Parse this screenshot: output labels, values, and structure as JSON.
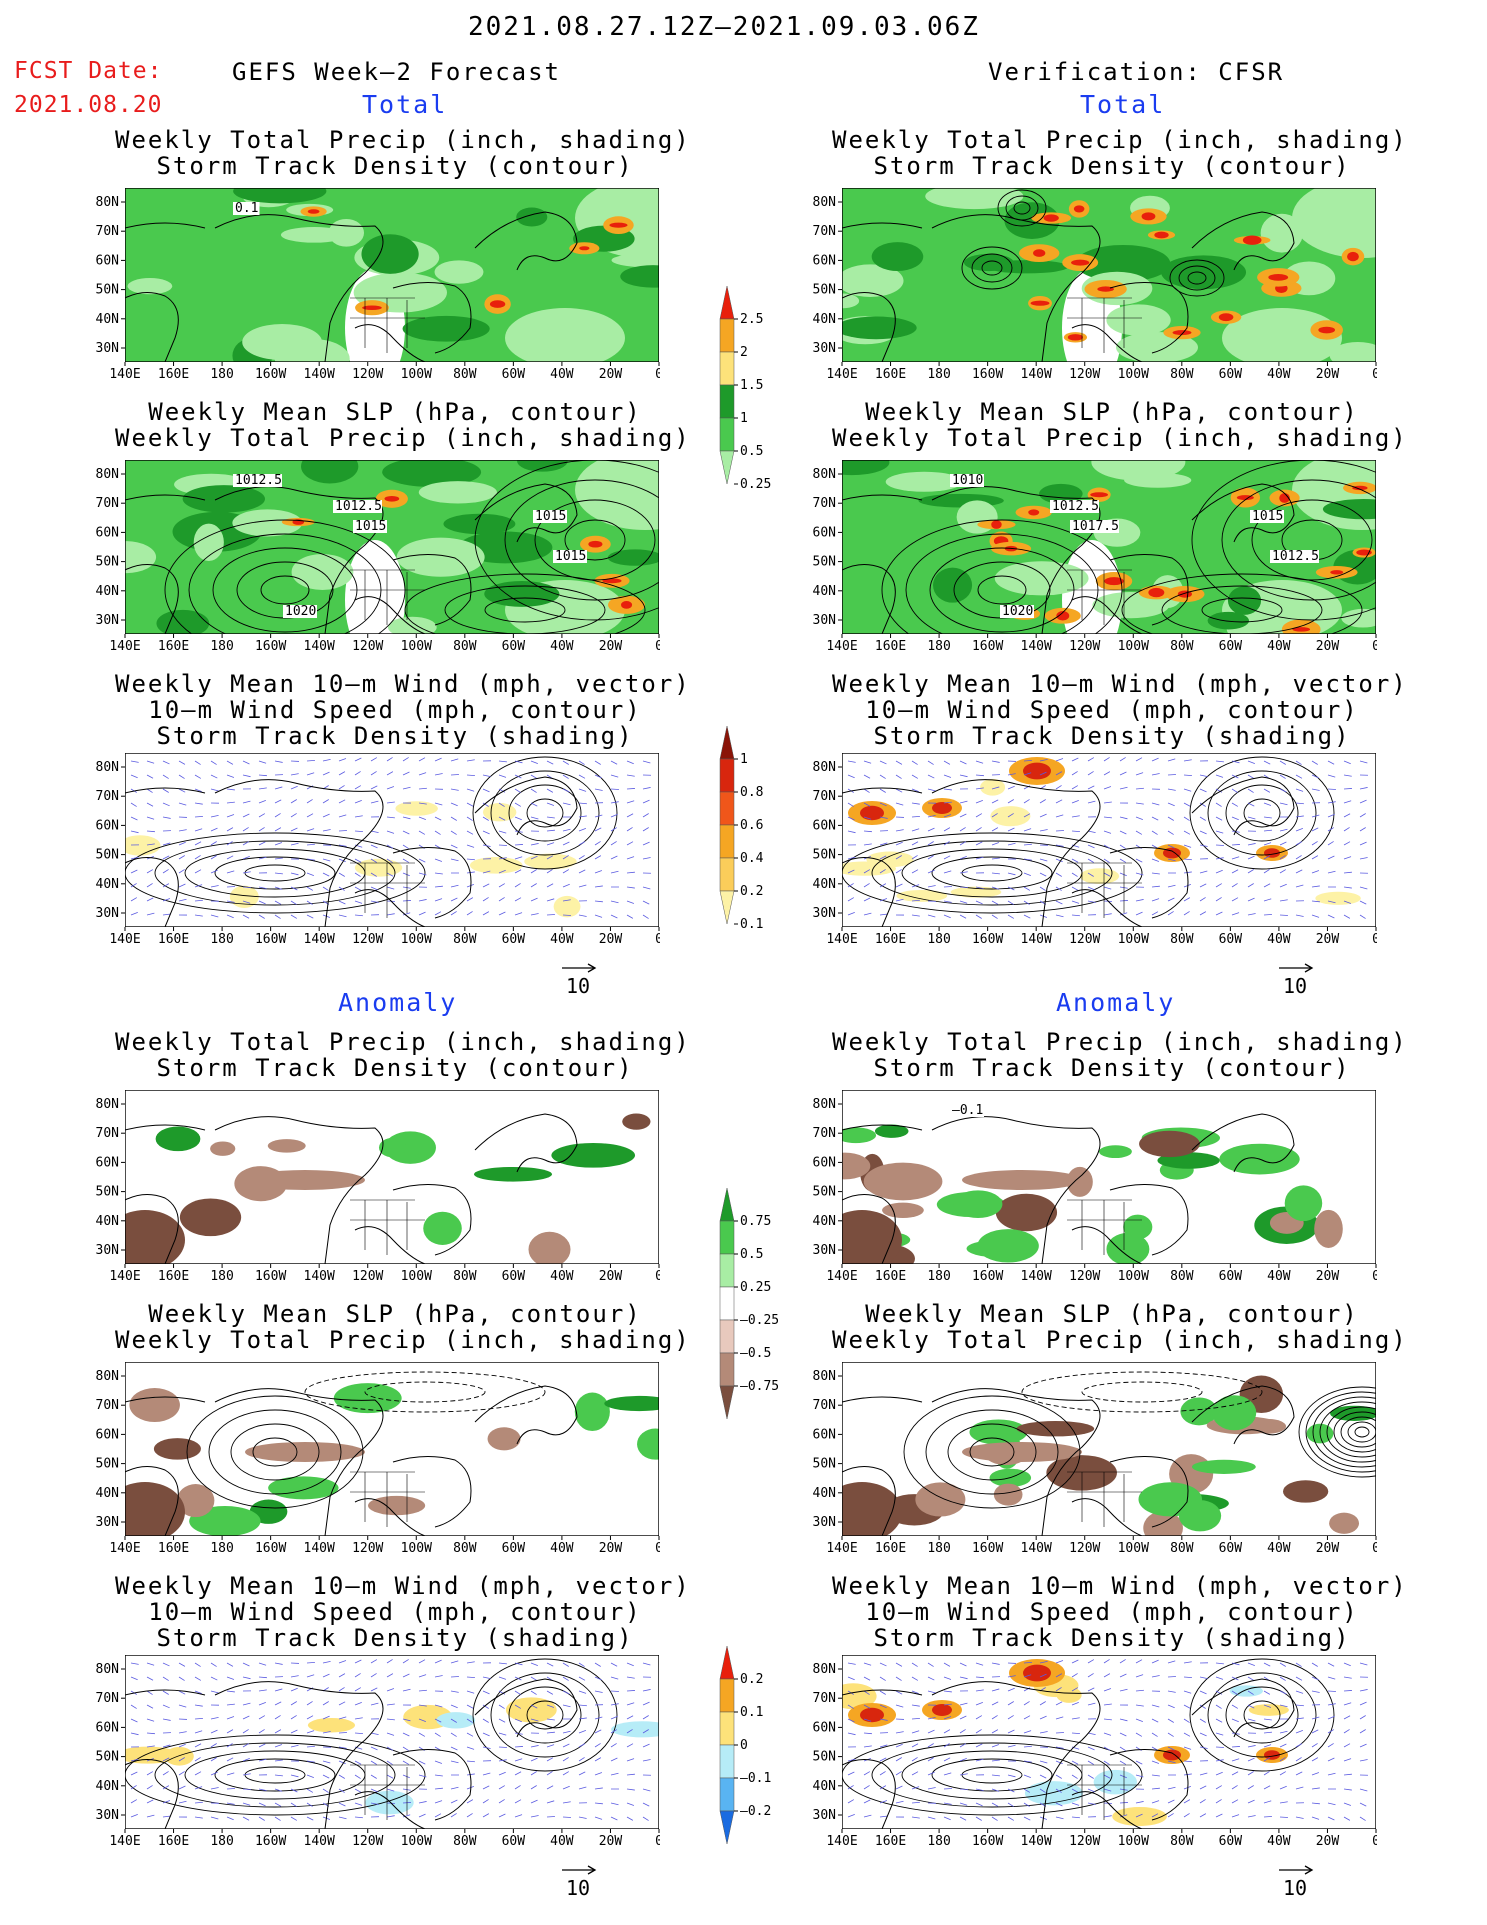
{
  "header": {
    "date_range": "2021.08.27.12Z–2021.09.03.06Z",
    "fcst_label": "FCST Date:",
    "fcst_date": "2021.08.20",
    "left_title": "GEFS Week–2 Forecast",
    "right_title": "Verification: CFSR"
  },
  "sections": {
    "total": "Total",
    "anomaly": "Anomaly"
  },
  "panel_titles": {
    "precip_storm": [
      "Weekly Total Precip (inch, shading)",
      "Storm Track Density (contour)"
    ],
    "slp_precip": [
      "Weekly Mean SLP (hPa, contour)",
      "Weekly Total Precip (inch, shading)"
    ],
    "wind_storm": [
      "Weekly Mean 10–m Wind (mph, vector)",
      "10–m Wind Speed (mph, contour)",
      "Storm Track Density (shading)"
    ]
  },
  "axes": {
    "lat_labels": [
      "80N",
      "70N",
      "60N",
      "50N",
      "40N",
      "30N"
    ],
    "lon_labels": [
      "140E",
      "160E",
      "180",
      "160W",
      "140W",
      "120W",
      "100W",
      "80W",
      "60W",
      "40W",
      "20W",
      "0"
    ]
  },
  "contour_labels": {
    "fcst_precip": [
      "0.1"
    ],
    "fcst_slp": [
      "1012.5",
      "1012.5",
      "1015",
      "1015",
      "1015",
      "1020"
    ],
    "cfsr_slp": [
      "1010",
      "1012.5",
      "1017.5",
      "1015",
      "1012.5",
      "1020"
    ],
    "cfsr_precip_anom": [
      "–0.1"
    ]
  },
  "vector_reference": "10",
  "colorbars": {
    "precip_total": {
      "labels": [
        "2.5",
        "2",
        "1.5",
        "1",
        "0.5",
        "0.25"
      ],
      "colors": [
        "#e8200c",
        "#f5a623",
        "#fde27a",
        "#1e9a2a",
        "#4ac94e",
        "#a8eda4"
      ]
    },
    "storm_total": {
      "labels": [
        "1",
        "0.8",
        "0.6",
        "0.4",
        "0.2",
        "0.1"
      ],
      "colors": [
        "#8a1408",
        "#d8260e",
        "#f0561a",
        "#f5a623",
        "#fbcd5a",
        "#fdf2a6"
      ]
    },
    "precip_anom": {
      "labels": [
        "0.75",
        "0.5",
        "0.25",
        "–0.25",
        "–0.5",
        "–0.75"
      ],
      "colors": [
        "#1e9a2a",
        "#4ac94e",
        "#a8eda4",
        "#ffffff",
        "#e8c9bd",
        "#b48a78",
        "#7a4e3e"
      ]
    },
    "storm_anom": {
      "labels": [
        "0.2",
        "0.1",
        "0",
        "–0.1",
        "–0.2"
      ],
      "colors": [
        "#e8200c",
        "#f5a623",
        "#fde27a",
        "#b6ecf7",
        "#59b4f2",
        "#1a6be0"
      ]
    }
  },
  "colors": {
    "fcst_red": "#e81c1c",
    "section_blue": "#1a3cf0",
    "precip_light": "#a8eda4",
    "precip_mid": "#4ac94e",
    "precip_dark": "#1e9a2a",
    "dry_anom": "#b48a78",
    "vector": "#5a5ae0"
  }
}
